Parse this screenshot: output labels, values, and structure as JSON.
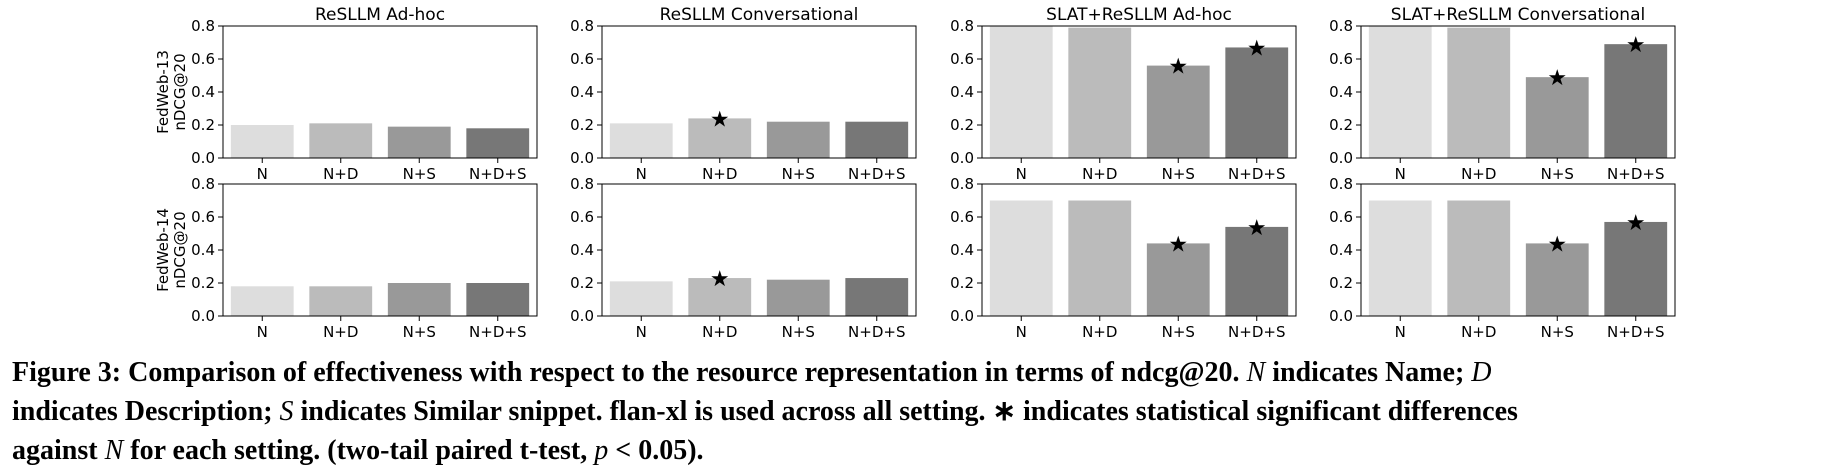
{
  "chart_data": [
    {
      "type": "bar",
      "title": "ReSLLM Ad-hoc",
      "ylabel": [
        "FedWeb-13",
        "nDCG@20"
      ],
      "categories": [
        "N",
        "N+D",
        "N+S",
        "N+D+S"
      ],
      "values": [
        0.2,
        0.21,
        0.19,
        0.18
      ],
      "colors": [
        "#dddddd",
        "#bbbbbb",
        "#999999",
        "#777777"
      ],
      "markers": [
        null,
        null,
        null,
        null
      ],
      "ylim": [
        0,
        0.8
      ],
      "yticks": [
        {
          "value": 0,
          "label": "0.0"
        },
        0.2,
        0.4,
        0.6,
        0.8
      ]
    },
    {
      "type": "bar",
      "title": "ReSLLM Conversational",
      "categories": [
        "N",
        "N+D",
        "N+S",
        "N+D+S"
      ],
      "values": [
        0.21,
        0.24,
        0.22,
        0.22
      ],
      "colors": [
        "#dddddd",
        "#bbbbbb",
        "#999999",
        "#777777"
      ],
      "markers": [
        null,
        "★",
        null,
        null
      ],
      "ylim": [
        0,
        0.8
      ],
      "yticks": [
        {
          "value": 0,
          "label": "0.0"
        },
        0.2,
        0.4,
        0.6,
        0.8
      ]
    },
    {
      "type": "bar",
      "title": "SLAT+ReSLLM Ad-hoc",
      "categories": [
        "N",
        "N+D",
        "N+S",
        "N+D+S"
      ],
      "values": [
        0.8,
        0.79,
        0.56,
        0.67
      ],
      "colors": [
        "#dddddd",
        "#bbbbbb",
        "#999999",
        "#777777"
      ],
      "markers": [
        null,
        null,
        "★",
        "★"
      ],
      "ylim": [
        0,
        0.8
      ],
      "yticks": [
        {
          "value": 0,
          "label": "0.0"
        },
        0.2,
        0.4,
        0.6,
        0.8
      ]
    },
    {
      "type": "bar",
      "title": "SLAT+ReSLLM Conversational",
      "categories": [
        "N",
        "N+D",
        "N+S",
        "N+D+S"
      ],
      "values": [
        0.8,
        0.79,
        0.49,
        0.69
      ],
      "colors": [
        "#dddddd",
        "#bbbbbb",
        "#999999",
        "#777777"
      ],
      "markers": [
        null,
        null,
        "★",
        "★"
      ],
      "ylim": [
        0,
        0.8
      ],
      "yticks": [
        {
          "value": 0,
          "label": "0.0"
        },
        0.2,
        0.4,
        0.6,
        0.8
      ]
    },
    {
      "type": "bar",
      "ylabel": [
        "FedWeb-14",
        "nDCG@20"
      ],
      "categories": [
        "N",
        "N+D",
        "N+S",
        "N+D+S"
      ],
      "values": [
        0.18,
        0.18,
        0.2,
        0.2
      ],
      "colors": [
        "#dddddd",
        "#bbbbbb",
        "#999999",
        "#777777"
      ],
      "markers": [
        null,
        null,
        null,
        null
      ],
      "ylim": [
        0,
        0.8
      ],
      "yticks": [
        {
          "value": 0,
          "label": "0.0"
        },
        0.2,
        0.4,
        0.6,
        0.8
      ]
    },
    {
      "type": "bar",
      "categories": [
        "N",
        "N+D",
        "N+S",
        "N+D+S"
      ],
      "values": [
        0.21,
        0.23,
        0.22,
        0.23
      ],
      "colors": [
        "#dddddd",
        "#bbbbbb",
        "#999999",
        "#777777"
      ],
      "markers": [
        null,
        "★",
        null,
        null
      ],
      "ylim": [
        0,
        0.8
      ],
      "yticks": [
        {
          "value": 0,
          "label": "0.0"
        },
        0.2,
        0.4,
        0.6,
        0.8
      ]
    },
    {
      "type": "bar",
      "categories": [
        "N",
        "N+D",
        "N+S",
        "N+D+S"
      ],
      "values": [
        0.7,
        0.7,
        0.44,
        0.54
      ],
      "colors": [
        "#dddddd",
        "#bbbbbb",
        "#999999",
        "#777777"
      ],
      "markers": [
        null,
        null,
        "★",
        "★"
      ],
      "ylim": [
        0,
        0.8
      ],
      "yticks": [
        {
          "value": 0,
          "label": "0.0"
        },
        0.2,
        0.4,
        0.6,
        0.8
      ]
    },
    {
      "type": "bar",
      "categories": [
        "N",
        "N+D",
        "N+S",
        "N+D+S"
      ],
      "values": [
        0.7,
        0.7,
        0.44,
        0.57
      ],
      "colors": [
        "#dddddd",
        "#bbbbbb",
        "#999999",
        "#777777"
      ],
      "markers": [
        null,
        null,
        "★",
        "★"
      ],
      "ylim": [
        0,
        0.8
      ],
      "yticks": [
        {
          "value": 0,
          "label": "0.0"
        },
        0.2,
        0.4,
        0.6,
        0.8
      ]
    }
  ],
  "caption_lines": [
    [
      {
        "text": "Figure 3: Comparison of effectiveness with respect to the resource representation in terms of ndcg@20. ",
        "italic": false
      },
      {
        "text": "N",
        "italic": true
      },
      {
        "text": " indicates Name; ",
        "italic": false
      },
      {
        "text": "D",
        "italic": true
      }
    ],
    [
      {
        "text": "indicates Description; ",
        "italic": false
      },
      {
        "text": "S",
        "italic": true
      },
      {
        "text": " indicates Similar snippet. flan-xl is used across all setting. ∗ indicates statistical significant differences",
        "italic": false
      }
    ],
    [
      {
        "text": "against ",
        "italic": false
      },
      {
        "text": "N",
        "italic": true
      },
      {
        "text": " for each setting. (two-tail paired t-test, ",
        "italic": false
      },
      {
        "text": "p",
        "italic": true
      },
      {
        "text": " < 0.05).",
        "italic": false
      }
    ]
  ]
}
